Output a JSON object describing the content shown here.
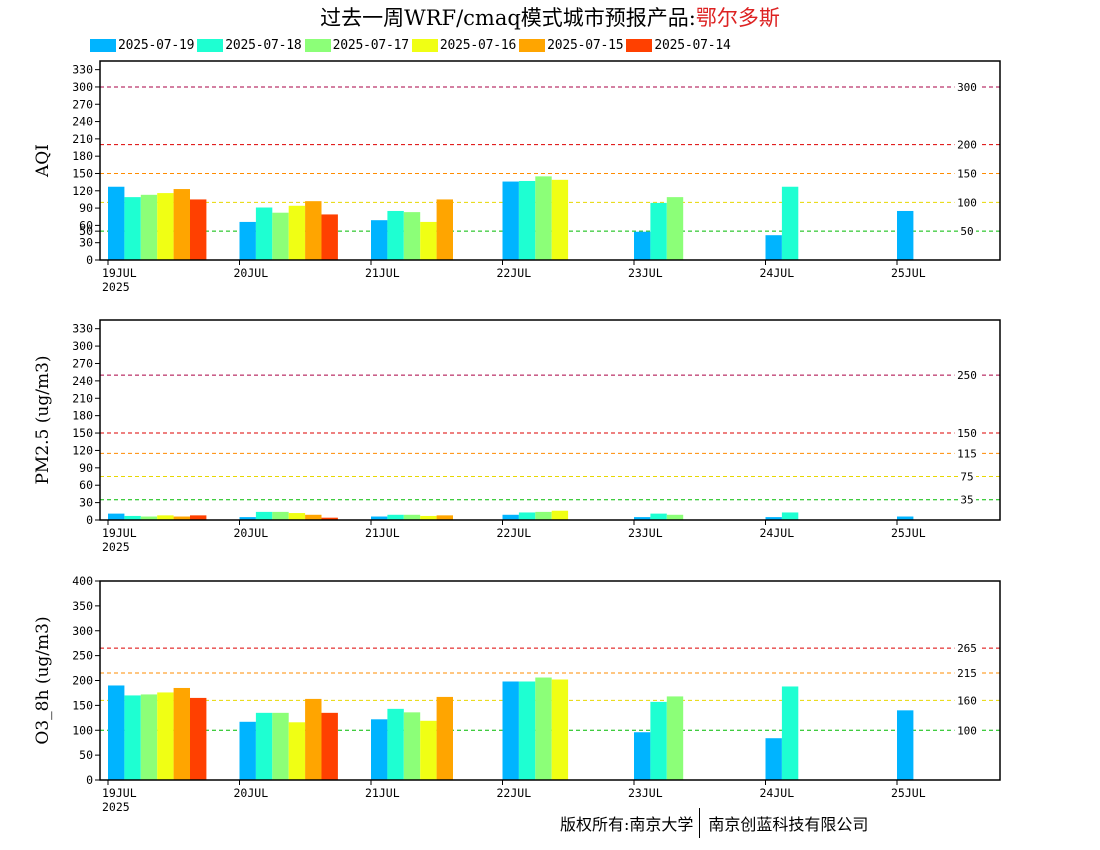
{
  "title": {
    "main": "过去一周WRF/cmaq模式城市预报产品:",
    "city": "鄂尔多斯"
  },
  "colors": {
    "series": [
      "#00b4ff",
      "#1effd2",
      "#8cff78",
      "#f0ff14",
      "#ffa500",
      "#ff4000"
    ],
    "threshold_green": "#00bb00",
    "threshold_yellow": "#e8d800",
    "threshold_orange": "#ff8c00",
    "threshold_red": "#dd0000",
    "threshold_purple": "#aa0044"
  },
  "legend": [
    "2025-07-19",
    "2025-07-18",
    "2025-07-17",
    "2025-07-16",
    "2025-07-15",
    "2025-07-14"
  ],
  "x_ticks": [
    "19JUL",
    "20JUL",
    "21JUL",
    "22JUL",
    "23JUL",
    "24JUL",
    "25JUL"
  ],
  "x_year": "2025",
  "chart_data": [
    {
      "type": "bar",
      "ylabel": "AQI",
      "ylim": [
        0,
        345
      ],
      "yticks": [
        0,
        30,
        50,
        60,
        90,
        120,
        150,
        180,
        210,
        240,
        270,
        300,
        330
      ],
      "thresholds": [
        {
          "value": 50,
          "label": "50",
          "color": "threshold_green"
        },
        {
          "value": 100,
          "label": "100",
          "color": "threshold_yellow"
        },
        {
          "value": 150,
          "label": "150",
          "color": "threshold_orange"
        },
        {
          "value": 200,
          "label": "200",
          "color": "threshold_red"
        },
        {
          "value": 300,
          "label": "300",
          "color": "threshold_purple"
        }
      ],
      "categories": [
        "19JUL",
        "20JUL",
        "21JUL",
        "22JUL",
        "23JUL",
        "24JUL",
        "25JUL"
      ],
      "series": [
        {
          "name": "2025-07-19",
          "values": [
            127,
            66,
            69,
            136,
            49,
            43,
            85
          ]
        },
        {
          "name": "2025-07-18",
          "values": [
            109,
            91,
            85,
            137,
            99,
            127,
            null
          ]
        },
        {
          "name": "2025-07-17",
          "values": [
            113,
            82,
            83,
            145,
            109,
            null,
            null
          ]
        },
        {
          "name": "2025-07-16",
          "values": [
            116,
            94,
            66,
            139,
            null,
            null,
            null
          ]
        },
        {
          "name": "2025-07-15",
          "values": [
            123,
            102,
            105,
            null,
            null,
            null,
            null
          ]
        },
        {
          "name": "2025-07-14",
          "values": [
            105,
            79,
            null,
            null,
            null,
            null,
            null
          ]
        }
      ]
    },
    {
      "type": "bar",
      "ylabel": "PM2.5 (ug/m3)",
      "ylim": [
        0,
        345
      ],
      "yticks": [
        0,
        30,
        60,
        90,
        120,
        150,
        180,
        210,
        240,
        270,
        300,
        330
      ],
      "thresholds": [
        {
          "value": 35,
          "label": "35",
          "color": "threshold_green"
        },
        {
          "value": 75,
          "label": "75",
          "color": "threshold_yellow"
        },
        {
          "value": 115,
          "label": "115",
          "color": "threshold_orange"
        },
        {
          "value": 150,
          "label": "150",
          "color": "threshold_red"
        },
        {
          "value": 250,
          "label": "250",
          "color": "threshold_purple"
        }
      ],
      "categories": [
        "19JUL",
        "20JUL",
        "21JUL",
        "22JUL",
        "23JUL",
        "24JUL",
        "25JUL"
      ],
      "series": [
        {
          "name": "2025-07-19",
          "values": [
            11,
            5,
            6,
            9,
            5,
            5,
            6
          ]
        },
        {
          "name": "2025-07-18",
          "values": [
            7,
            14,
            9,
            13,
            11,
            13,
            null
          ]
        },
        {
          "name": "2025-07-17",
          "values": [
            6,
            14,
            9,
            14,
            9,
            null,
            null
          ]
        },
        {
          "name": "2025-07-16",
          "values": [
            8,
            12,
            7,
            16,
            null,
            null,
            null
          ]
        },
        {
          "name": "2025-07-15",
          "values": [
            6,
            9,
            8,
            null,
            null,
            null,
            null
          ]
        },
        {
          "name": "2025-07-14",
          "values": [
            8,
            4,
            null,
            null,
            null,
            null,
            null
          ]
        }
      ]
    },
    {
      "type": "bar",
      "ylabel": "O3_8h (ug/m3)",
      "ylim": [
        0,
        400
      ],
      "yticks": [
        0,
        50,
        100,
        150,
        200,
        250,
        300,
        350,
        400
      ],
      "thresholds": [
        {
          "value": 100,
          "label": "100",
          "color": "threshold_green"
        },
        {
          "value": 160,
          "label": "160",
          "color": "threshold_yellow"
        },
        {
          "value": 215,
          "label": "215",
          "color": "threshold_orange"
        },
        {
          "value": 265,
          "label": "265",
          "color": "threshold_red"
        }
      ],
      "categories": [
        "19JUL",
        "20JUL",
        "21JUL",
        "22JUL",
        "23JUL",
        "24JUL",
        "25JUL"
      ],
      "series": [
        {
          "name": "2025-07-19",
          "values": [
            190,
            117,
            122,
            198,
            96,
            84,
            140
          ]
        },
        {
          "name": "2025-07-18",
          "values": [
            170,
            135,
            143,
            198,
            157,
            188,
            null
          ]
        },
        {
          "name": "2025-07-17",
          "values": [
            172,
            135,
            136,
            206,
            168,
            null,
            null
          ]
        },
        {
          "name": "2025-07-16",
          "values": [
            176,
            116,
            119,
            202,
            null,
            null,
            null
          ]
        },
        {
          "name": "2025-07-15",
          "values": [
            185,
            163,
            167,
            null,
            null,
            null,
            null
          ]
        },
        {
          "name": "2025-07-14",
          "values": [
            165,
            135,
            null,
            null,
            null,
            null,
            null
          ]
        }
      ]
    }
  ],
  "footer": {
    "left": "版权所有:南京大学",
    "right": "南京创蓝科技有限公司"
  }
}
